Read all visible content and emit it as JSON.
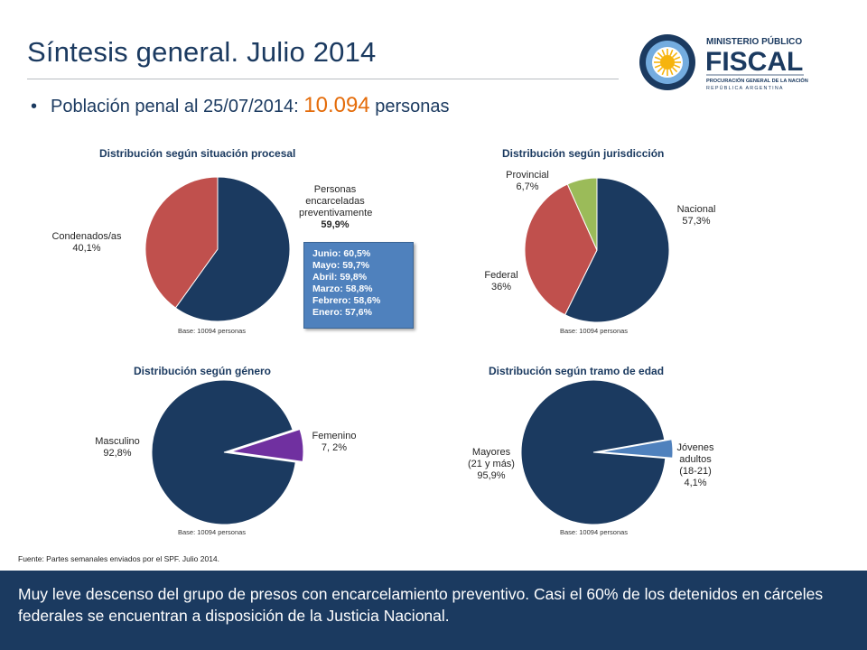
{
  "header": {
    "title": "Síntesis general. Julio 2014",
    "bullet_prefix": "Población penal al 25/07/2014",
    "bullet_colon": ": ",
    "bullet_number": "10.094",
    "bullet_suffix": " personas"
  },
  "logo": {
    "line1": "MINISTERIO PÚBLICO",
    "line2": "FISCAL",
    "line3": "PROCURACIÓN GENERAL DE LA NACIÓN",
    "line4": "REPÚBLICA ARGENTINA",
    "colors": {
      "navy": "#1b3a60",
      "sky": "#74acdf",
      "sun": "#f6b40e"
    }
  },
  "colors": {
    "navy": "#1b3a60",
    "red": "#c0504d",
    "green": "#9bbb59",
    "purple": "#7030a0",
    "blue": "#4f81bd",
    "orange": "#e46c0a"
  },
  "chart_data": [
    {
      "type": "pie",
      "title": "Distribución según situación procesal",
      "labels": [
        "Personas encarceladas preventivamente",
        "Condenados/as"
      ],
      "values": [
        59.9,
        40.1
      ],
      "value_labels": [
        "59,9%",
        "40,1%"
      ],
      "colors": [
        "#1b3a60",
        "#c0504d"
      ],
      "base": "Base: 10094 personas",
      "annotation": [
        "Junio: 60,5%",
        "Mayo: 59,7%",
        "Abril: 59,8%",
        "Marzo: 58,8%",
        "Febrero: 58,6%",
        "Enero: 57,6%"
      ]
    },
    {
      "type": "pie",
      "title": "Distribución según jurisdicción",
      "labels": [
        "Nacional",
        "Federal",
        "Provincial"
      ],
      "values": [
        57.3,
        36,
        6.7
      ],
      "value_labels": [
        "57,3%",
        "36%",
        "6,7%"
      ],
      "colors": [
        "#1b3a60",
        "#c0504d",
        "#9bbb59"
      ],
      "base": "Base: 10094 personas"
    },
    {
      "type": "pie",
      "title": "Distribución según género",
      "labels": [
        "Femenino",
        "Masculino"
      ],
      "values": [
        7.2,
        92.8
      ],
      "value_labels": [
        "7, 2%",
        "92,8%"
      ],
      "colors": [
        "#7030a0",
        "#1b3a60"
      ],
      "base": "Base: 10094 personas"
    },
    {
      "type": "pie",
      "title": "Distribución según tramo de edad",
      "labels": [
        "Jóvenes adultos (18-21)",
        "Mayores (21 y más)"
      ],
      "values": [
        4.1,
        95.9
      ],
      "value_labels": [
        "4,1%",
        "95,9%"
      ],
      "colors": [
        "#4f81bd",
        "#1b3a60"
      ],
      "base": "Base: 10094 personas"
    }
  ],
  "labels": {
    "c1": {
      "preventivos_l1": "Personas",
      "preventivos_l2": "encarceladas",
      "preventivos_l3": "preventivamente",
      "condenados": "Condenados/as"
    },
    "c2": {
      "nacional": "Nacional",
      "federal": "Federal",
      "provincial": "Provincial"
    },
    "c3": {
      "femenino": "Femenino",
      "masculino": "Masculino"
    },
    "c4": {
      "jovenes_l1": "Jóvenes",
      "jovenes_l2": "adultos",
      "jovenes_l3": "(18-21)",
      "mayores_l1": "Mayores",
      "mayores_l2": "(21 y más)"
    }
  },
  "footer": {
    "source": "Fuente: Partes semanales enviados por el SPF. Julio 2014.",
    "summary": "Muy leve descenso del grupo de presos con encarcelamiento preventivo. Casi el 60% de los detenidos en cárceles federales se encuentran a disposición de la Justicia Nacional."
  }
}
